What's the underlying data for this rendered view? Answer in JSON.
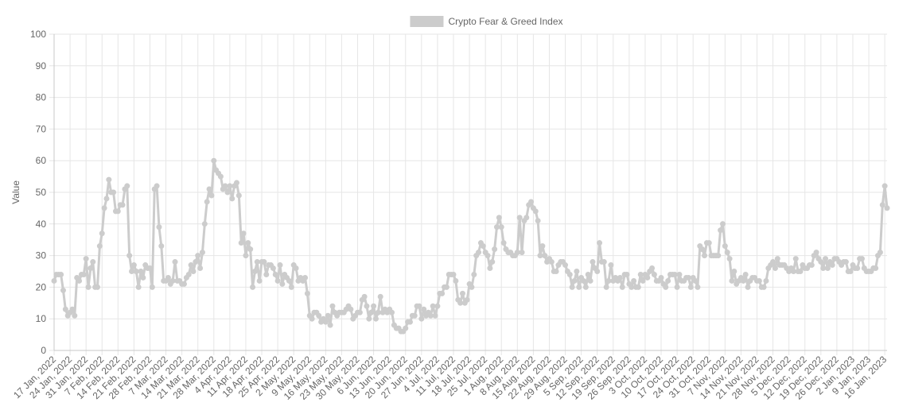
{
  "chart_data": {
    "type": "line",
    "ylabel": "Value",
    "legend": "top",
    "grid": true,
    "ylim": [
      0,
      100
    ],
    "yticks": [
      0,
      10,
      20,
      30,
      40,
      50,
      60,
      70,
      80,
      90,
      100
    ],
    "categories": [
      "17 Jan, 2022",
      null,
      null,
      null,
      null,
      null,
      null,
      "24 Jan, 2022",
      null,
      null,
      null,
      null,
      null,
      null,
      "31 Jan, 2022",
      null,
      null,
      null,
      null,
      null,
      null,
      "7 Feb, 2022",
      null,
      null,
      null,
      null,
      null,
      null,
      "14 Feb, 2022",
      null,
      null,
      null,
      null,
      null,
      null,
      "21 Feb, 2022",
      null,
      null,
      null,
      null,
      null,
      null,
      "28 Feb, 2022",
      null,
      null,
      null,
      null,
      null,
      null,
      "7 Mar, 2022",
      null,
      null,
      null,
      null,
      null,
      null,
      "14 Mar, 2022",
      null,
      null,
      null,
      null,
      null,
      null,
      "21 Mar, 2022",
      null,
      null,
      null,
      null,
      null,
      null,
      "28 Mar, 2022",
      null,
      null,
      null,
      null,
      null,
      null,
      "4 Apr, 2022",
      null,
      null,
      null,
      null,
      null,
      null,
      "11 Apr, 2022",
      null,
      null,
      null,
      null,
      null,
      null,
      "18 Apr, 2022",
      null,
      null,
      null,
      null,
      null,
      null,
      "25 Apr, 2022",
      null,
      null,
      null,
      null,
      null,
      null,
      "2 May, 2022",
      null,
      null,
      null,
      null,
      null,
      null,
      "9 May, 2022",
      null,
      null,
      null,
      null,
      null,
      null,
      "16 May, 2022",
      null,
      null,
      null,
      null,
      null,
      null,
      "23 May, 2022",
      null,
      null,
      null,
      null,
      null,
      null,
      "30 May, 2022",
      null,
      null,
      null,
      null,
      null,
      null,
      "6 Jun, 2022",
      null,
      null,
      null,
      null,
      null,
      null,
      "13 Jun, 2022",
      null,
      null,
      null,
      null,
      null,
      null,
      "20 Jun, 2022",
      null,
      null,
      null,
      null,
      null,
      null,
      "27 Jun, 2022",
      null,
      null,
      null,
      null,
      null,
      null,
      "4 Jul, 2022",
      null,
      null,
      null,
      null,
      null,
      null,
      "11 Jul, 2022",
      null,
      null,
      null,
      null,
      null,
      null,
      "18 Jul, 2022",
      null,
      null,
      null,
      null,
      null,
      null,
      "25 Jul, 2022",
      null,
      null,
      null,
      null,
      null,
      null,
      "1 Aug, 2022",
      null,
      null,
      null,
      null,
      null,
      null,
      "8 Aug, 2022",
      null,
      null,
      null,
      null,
      null,
      null,
      "15 Aug, 2022",
      null,
      null,
      null,
      null,
      null,
      null,
      "22 Aug, 2022",
      null,
      null,
      null,
      null,
      null,
      null,
      "29 Aug, 2022",
      null,
      null,
      null,
      null,
      null,
      null,
      "5 Sep, 2022",
      null,
      null,
      null,
      null,
      null,
      null,
      "12 Sep, 2022",
      null,
      null,
      null,
      null,
      null,
      null,
      "19 Sep, 2022",
      null,
      null,
      null,
      null,
      null,
      null,
      "26 Sep, 2022",
      null,
      null,
      null,
      null,
      null,
      null,
      "3 Oct, 2022",
      null,
      null,
      null,
      null,
      null,
      null,
      "10 Oct, 2022",
      null,
      null,
      null,
      null,
      null,
      null,
      "17 Oct, 2022",
      null,
      null,
      null,
      null,
      null,
      null,
      "24 Oct, 2022",
      null,
      null,
      null,
      null,
      null,
      null,
      "31 Oct, 2022",
      null,
      null,
      null,
      null,
      null,
      null,
      "7 Nov, 2022",
      null,
      null,
      null,
      null,
      null,
      null,
      "14 Nov, 2022",
      null,
      null,
      null,
      null,
      null,
      null,
      "21 Nov, 2022",
      null,
      null,
      null,
      null,
      null,
      null,
      "28 Nov, 2022",
      null,
      null,
      null,
      null,
      null,
      null,
      "5 Dec, 2022",
      null,
      null,
      null,
      null,
      null,
      null,
      "12 Dec, 2022",
      null,
      null,
      null,
      null,
      null,
      null,
      "19 Dec, 2022",
      null,
      null,
      null,
      null,
      null,
      null,
      "26 Dec, 2022",
      null,
      null,
      null,
      null,
      null,
      null,
      "2 Jan, 2023",
      null,
      null,
      null,
      null,
      null,
      null,
      "9 Jan, 2023",
      null,
      null,
      null,
      null,
      null,
      null,
      "16 Jan, 2023",
      null
    ],
    "series": [
      {
        "name": "Crypto Fear & Greed Index",
        "color": "#cccccc",
        "values": [
          22,
          24,
          24,
          24,
          19,
          13,
          11,
          12,
          13,
          11,
          23,
          22,
          24,
          24,
          29,
          20,
          26,
          28,
          20,
          20,
          33,
          37,
          45,
          48,
          54,
          50,
          50,
          44,
          44,
          46,
          46,
          51,
          52,
          30,
          25,
          27,
          25,
          20,
          25,
          23,
          27,
          26,
          26,
          20,
          51,
          52,
          39,
          33,
          22,
          22,
          23,
          21,
          22,
          28,
          22,
          22,
          21,
          21,
          23,
          24,
          27,
          25,
          28,
          30,
          26,
          31,
          40,
          47,
          51,
          49,
          60,
          57,
          56,
          55,
          51,
          52,
          50,
          52,
          48,
          52,
          53,
          49,
          34,
          37,
          30,
          34,
          32,
          20,
          25,
          28,
          22,
          28,
          28,
          24,
          27,
          27,
          26,
          24,
          22,
          27,
          21,
          24,
          23,
          22,
          20,
          27,
          26,
          22,
          23,
          22,
          23,
          18,
          11,
          10,
          12,
          12,
          11,
          9,
          10,
          9,
          11,
          8,
          14,
          12,
          11,
          12,
          12,
          12,
          13,
          14,
          13,
          10,
          11,
          12,
          12,
          16,
          17,
          14,
          10,
          12,
          14,
          10,
          12,
          17,
          12,
          13,
          12,
          13,
          12,
          8,
          7,
          7,
          6,
          6,
          7,
          9,
          9,
          11,
          11,
          14,
          14,
          10,
          13,
          11,
          12,
          11,
          14,
          11,
          14,
          18,
          18,
          20,
          20,
          24,
          24,
          24,
          22,
          16,
          15,
          18,
          15,
          16,
          21,
          20,
          24,
          30,
          31,
          34,
          33,
          31,
          30,
          26,
          28,
          32,
          39,
          42,
          39,
          34,
          32,
          31,
          31,
          30,
          30,
          31,
          42,
          31,
          41,
          42,
          46,
          47,
          45,
          44,
          41,
          30,
          33,
          30,
          28,
          29,
          28,
          25,
          25,
          27,
          28,
          28,
          27,
          25,
          24,
          20,
          22,
          25,
          20,
          23,
          22,
          20,
          24,
          22,
          28,
          26,
          25,
          34,
          28,
          28,
          20,
          22,
          27,
          22,
          23,
          22,
          23,
          20,
          24,
          24,
          21,
          20,
          22,
          20,
          20,
          24,
          22,
          24,
          23,
          25,
          26,
          24,
          22,
          22,
          23,
          21,
          20,
          22,
          24,
          24,
          24,
          20,
          24,
          22,
          22,
          23,
          23,
          20,
          23,
          22,
          20,
          33,
          32,
          30,
          34,
          34,
          30,
          30,
          30,
          30,
          38,
          40,
          33,
          31,
          29,
          22,
          25,
          21,
          22,
          23,
          22,
          24,
          20,
          22,
          23,
          23,
          22,
          22,
          20,
          20,
          22,
          26,
          27,
          28,
          26,
          29,
          27,
          27,
          27,
          26,
          25,
          26,
          25,
          29,
          25,
          25,
          27,
          26,
          26,
          27,
          27,
          30,
          31,
          29,
          28,
          26,
          29,
          26,
          28,
          27,
          29,
          29,
          28,
          27,
          28,
          28,
          25,
          25,
          27,
          26,
          26,
          29,
          29,
          26,
          25,
          25,
          25,
          26,
          26,
          30,
          31,
          46,
          52,
          45
        ]
      }
    ]
  }
}
